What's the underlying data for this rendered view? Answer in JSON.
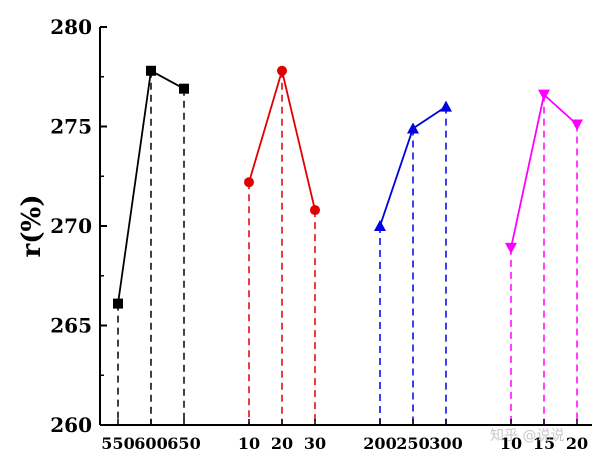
{
  "chart_data": {
    "type": "line",
    "title": "",
    "ylabel": "r(%)",
    "xlabel": "",
    "ylim": [
      260,
      280
    ],
    "y_ticks": [
      260,
      265,
      270,
      275,
      280
    ],
    "grid": false,
    "legend": "none",
    "groups": [
      {
        "categories": [
          "550",
          "600",
          "650"
        ],
        "values": [
          266.1,
          277.8,
          276.9
        ],
        "color": "#000000",
        "marker": "square"
      },
      {
        "categories": [
          "10",
          "20",
          "30"
        ],
        "values": [
          272.2,
          277.8,
          270.8
        ],
        "color": "#e00000",
        "marker": "circle"
      },
      {
        "categories": [
          "200",
          "250",
          "300"
        ],
        "values": [
          270.0,
          274.9,
          276.0
        ],
        "color": "#0000e0",
        "marker": "triangle-up"
      },
      {
        "categories": [
          "10",
          "15",
          "20"
        ],
        "values": [
          268.9,
          276.6,
          275.1
        ],
        "color": "#ff00ff",
        "marker": "triangle-down"
      }
    ]
  },
  "watermark": "知乎 @说说"
}
